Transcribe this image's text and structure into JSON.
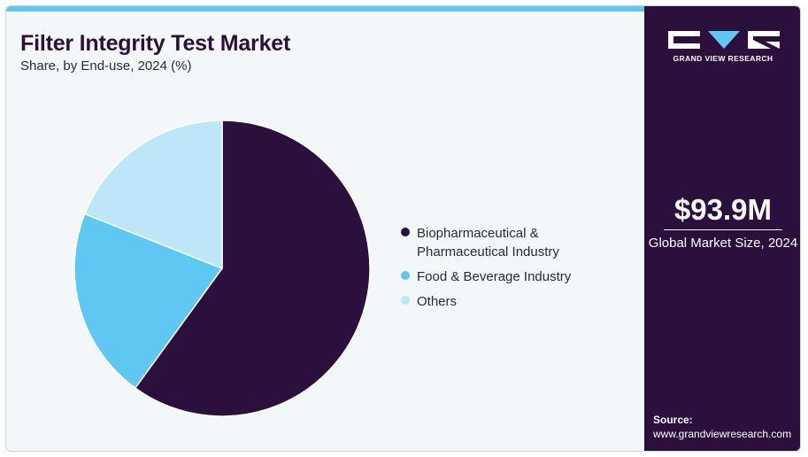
{
  "header": {
    "title": "Filter Integrity Test Market",
    "subtitle": "Share, by End-use, 2024 (%)"
  },
  "colors": {
    "biopharma": "#2b0f3d",
    "food": "#5ec8f2",
    "others": "#bde6f8",
    "sidebar": "#2b0f3d",
    "accent_bar": "#5ec8f2"
  },
  "chart_data": {
    "type": "pie",
    "title": "Filter Integrity Test Market",
    "subtitle": "Share, by End-use, 2024 (%)",
    "categories": [
      "Biopharmaceutical & Pharmaceutical Industry",
      "Food & Beverage Industry",
      "Others"
    ],
    "values": [
      60,
      21,
      19
    ],
    "legend": "right"
  },
  "legend": {
    "items": [
      {
        "label": "Biopharmaceutical & Pharmaceutical Industry",
        "color": "#2b0f3d"
      },
      {
        "label": "Food & Beverage Industry",
        "color": "#5ec8f2"
      },
      {
        "label": "Others",
        "color": "#bde6f8"
      }
    ]
  },
  "sidebar": {
    "brand": "GRAND VIEW RESEARCH",
    "market_value": "$93.9M",
    "market_label": "Global Market Size, 2024",
    "source_label": "Source:",
    "source_url": "www.grandviewresearch.com"
  }
}
